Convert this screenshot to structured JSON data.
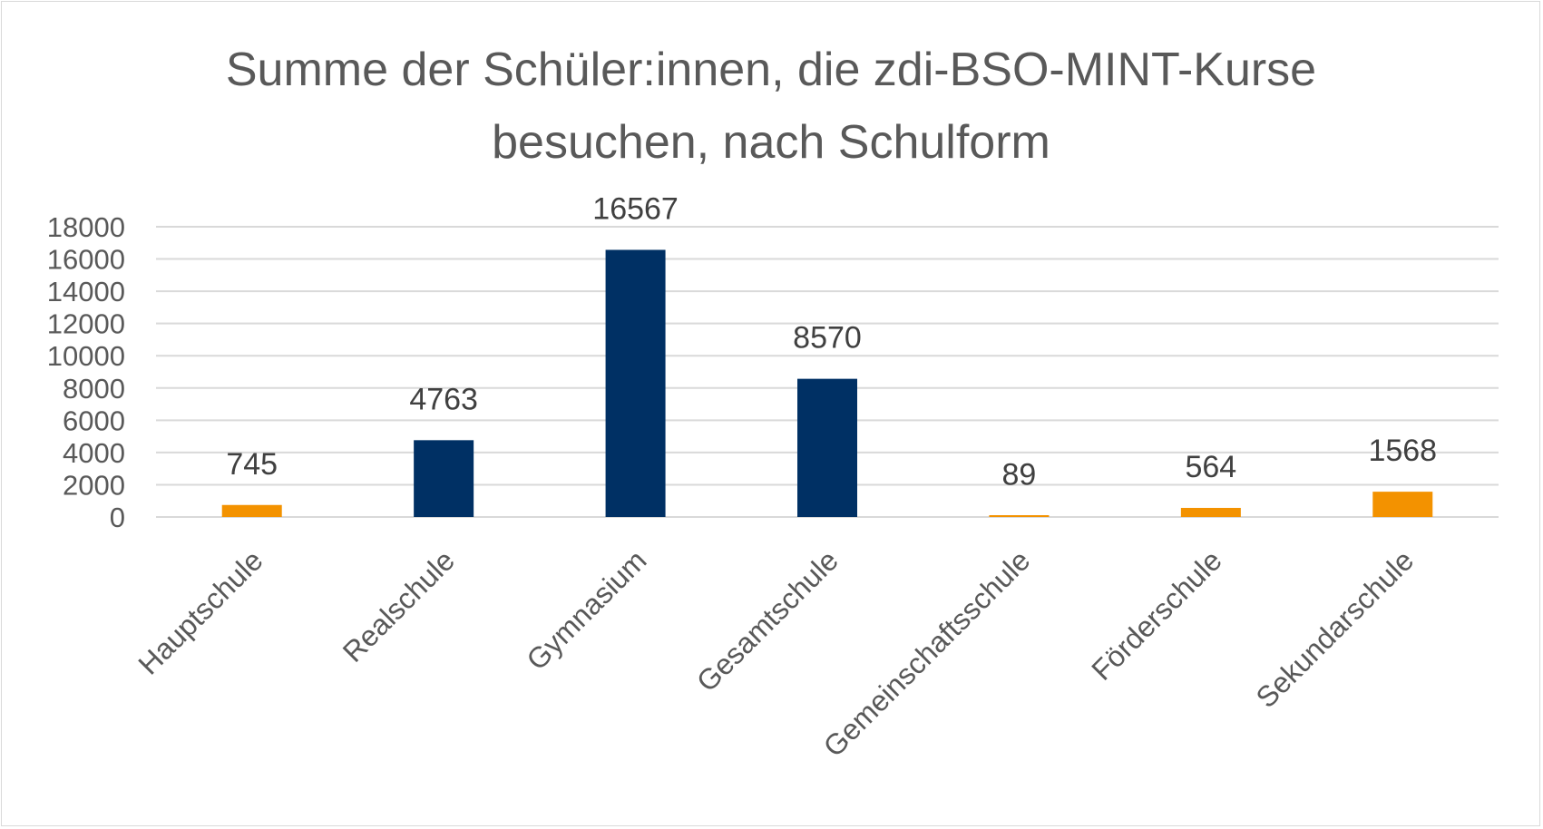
{
  "chart_data": {
    "type": "bar",
    "title": [
      "Summe der Schüler:innen, die zdi-BSO-MINT-Kurse",
      "besuchen, nach Schulform"
    ],
    "categories": [
      "Hauptschule",
      "Realschule",
      "Gymnasium",
      "Gesamtschule",
      "Gemeinschaftsschule",
      "Förderschule",
      "Sekundarschule"
    ],
    "values": [
      745,
      4763,
      16567,
      8570,
      89,
      564,
      1568
    ],
    "bar_colors": [
      "#f39200",
      "#003064",
      "#003064",
      "#003064",
      "#f39200",
      "#f39200",
      "#f39200"
    ],
    "ylim": [
      0,
      18000
    ],
    "yticks": [
      0,
      2000,
      4000,
      6000,
      8000,
      10000,
      12000,
      14000,
      16000,
      18000
    ],
    "xlabel": "",
    "ylabel": "",
    "grid": true,
    "legend": "none",
    "data_labels": true
  }
}
